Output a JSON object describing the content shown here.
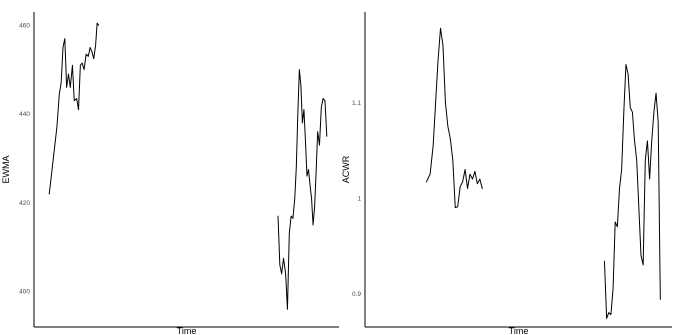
{
  "chart_data": [
    {
      "type": "line",
      "xlabel": "Time",
      "ylabel": "EWMA",
      "ylim": [
        392,
        463
      ],
      "yticks": [
        400,
        420,
        440,
        460
      ],
      "grid": false,
      "line_color": "#000000",
      "series": [
        {
          "values": [
            [
              0.05,
              422.0
            ],
            [
              0.065,
              431.0
            ],
            [
              0.075,
              437.0
            ],
            [
              0.083,
              444.5
            ],
            [
              0.089,
              447.0
            ],
            [
              0.095,
              455.0
            ],
            [
              0.101,
              457.0
            ],
            [
              0.107,
              446.0
            ],
            [
              0.113,
              449.0
            ],
            [
              0.119,
              446.0
            ],
            [
              0.126,
              451.0
            ],
            [
              0.132,
              443.0
            ],
            [
              0.14,
              443.5
            ],
            [
              0.146,
              441.0
            ],
            [
              0.152,
              451.0
            ],
            [
              0.158,
              451.5
            ],
            [
              0.164,
              450.0
            ],
            [
              0.171,
              453.5
            ],
            [
              0.178,
              453.0
            ],
            [
              0.184,
              455.0
            ],
            [
              0.19,
              454.0
            ],
            [
              0.196,
              452.5
            ],
            [
              0.202,
              455.5
            ],
            [
              0.207,
              460.5
            ],
            [
              0.212,
              460.0
            ],
            [
              null,
              null
            ],
            [
              0.8,
              417.0
            ],
            [
              0.806,
              406.0
            ],
            [
              0.812,
              404.0
            ],
            [
              0.818,
              407.5
            ],
            [
              0.825,
              404.0
            ],
            [
              0.831,
              396.0
            ],
            [
              0.837,
              413.0
            ],
            [
              0.843,
              417.0
            ],
            [
              0.849,
              416.5
            ],
            [
              0.855,
              421.0
            ],
            [
              0.86,
              428.0
            ],
            [
              0.865,
              440.0
            ],
            [
              0.87,
              450.0
            ],
            [
              0.875,
              446.5
            ],
            [
              0.88,
              438.0
            ],
            [
              0.885,
              441.0
            ],
            [
              0.89,
              434.0
            ],
            [
              0.895,
              426.0
            ],
            [
              0.9,
              427.5
            ],
            [
              0.905,
              424.0
            ],
            [
              0.91,
              421.0
            ],
            [
              0.915,
              415.0
            ],
            [
              0.92,
              419.0
            ],
            [
              0.925,
              427.0
            ],
            [
              0.93,
              436.0
            ],
            [
              0.936,
              433.0
            ],
            [
              0.942,
              441.5
            ],
            [
              0.948,
              443.5
            ],
            [
              0.954,
              443.0
            ],
            [
              0.96,
              435.0
            ]
          ]
        }
      ]
    },
    {
      "type": "line",
      "xlabel": "Time",
      "ylabel": "ACWR",
      "ylim": [
        0.865,
        1.195
      ],
      "yticks": [
        0.9,
        1.0,
        1.1
      ],
      "grid": false,
      "line_color": "#000000",
      "series": [
        {
          "values": [
            [
              0.2,
              1.017
            ],
            [
              0.212,
              1.025
            ],
            [
              0.222,
              1.055
            ],
            [
              0.23,
              1.1
            ],
            [
              0.238,
              1.145
            ],
            [
              0.246,
              1.178
            ],
            [
              0.254,
              1.16
            ],
            [
              0.262,
              1.1
            ],
            [
              0.27,
              1.075
            ],
            [
              0.278,
              1.062
            ],
            [
              0.286,
              1.04
            ],
            [
              0.294,
              0.99
            ],
            [
              0.302,
              0.991
            ],
            [
              0.31,
              1.012
            ],
            [
              0.318,
              1.017
            ],
            [
              0.326,
              1.03
            ],
            [
              0.334,
              1.01
            ],
            [
              0.342,
              1.025
            ],
            [
              0.35,
              1.02
            ],
            [
              0.358,
              1.028
            ],
            [
              0.366,
              1.015
            ],
            [
              0.374,
              1.02
            ],
            [
              0.382,
              1.01
            ],
            [
              null,
              null
            ],
            [
              0.78,
              0.934
            ],
            [
              0.787,
              0.874
            ],
            [
              0.794,
              0.88
            ],
            [
              0.801,
              0.878
            ],
            [
              0.808,
              0.905
            ],
            [
              0.815,
              0.975
            ],
            [
              0.822,
              0.97
            ],
            [
              0.829,
              1.01
            ],
            [
              0.836,
              1.03
            ],
            [
              0.843,
              1.09
            ],
            [
              0.85,
              1.14
            ],
            [
              0.857,
              1.13
            ],
            [
              0.864,
              1.095
            ],
            [
              0.871,
              1.09
            ],
            [
              0.878,
              1.06
            ],
            [
              0.885,
              1.04
            ],
            [
              0.892,
              0.99
            ],
            [
              0.899,
              0.94
            ],
            [
              0.906,
              0.93
            ],
            [
              0.913,
              1.04
            ],
            [
              0.92,
              1.06
            ],
            [
              0.927,
              1.02
            ],
            [
              0.934,
              1.06
            ],
            [
              0.941,
              1.09
            ],
            [
              0.948,
              1.11
            ],
            [
              0.955,
              1.08
            ],
            [
              0.962,
              0.894
            ]
          ]
        }
      ]
    }
  ]
}
